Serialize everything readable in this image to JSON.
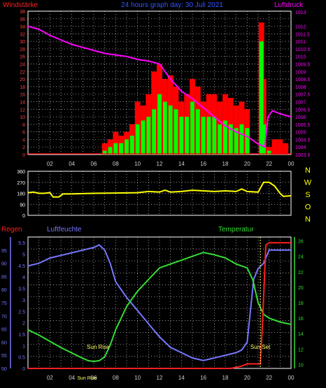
{
  "header": {
    "left_title": "Windstärke",
    "center_title": "24 hours graph day: 30 Juli 2021",
    "right_title": "Luftdruck"
  },
  "compass": [
    "N",
    "W",
    "S",
    "O",
    "N"
  ],
  "labels": {
    "regen": "Regen",
    "luftfeuchte": "Luftfeuchte",
    "temperatur": "Temperatur",
    "sun_rise": "Sun Rise",
    "sun_set": "Sun Set",
    "sun_rise_axis": "Sun Rise"
  },
  "colors": {
    "wind_gust": "#ff0000",
    "wind_avg": "#00ff00",
    "pressure": "#ff00ff",
    "direction": "#ffff00",
    "humidity": "#7777ff",
    "temperature": "#33dd33",
    "rain": "#ff2020",
    "wind_axis": "#ff4040",
    "pressure_axis": "#ff00ff",
    "dir_axis": "#ffffff",
    "rain_axis": "#7777ff",
    "temp_axis": "#33dd33",
    "grid": "#ffffff",
    "time_axis": "#4466ff"
  },
  "chart_data": [
    {
      "type": "bar",
      "title": "24 hours graph day: 30 Juli 2021",
      "ylabel": "Windstärke",
      "ylabel_right": "Luftdruck",
      "x_ticks": [
        "02",
        "04",
        "06",
        "08",
        "10",
        "12",
        "14",
        "16",
        "18",
        "20",
        "22",
        "00"
      ],
      "y_ticks": [
        "0",
        "2",
        "4",
        "6",
        "8",
        "10",
        "12",
        "14",
        "16",
        "18",
        "20",
        "22",
        "24",
        "26",
        "28",
        "30",
        "32",
        "34",
        "36",
        "38"
      ],
      "y_right_ticks": [
        "1003.5",
        "1004",
        "1004.5",
        "1005",
        "1005.5",
        "1006",
        "1006.5",
        "1007",
        "1007.5",
        "1008",
        "1008.5",
        "1009",
        "1009.5",
        "1010",
        "1010.5",
        "1011",
        "1011.5",
        "1012",
        "1013"
      ],
      "ylim": [
        0,
        38
      ],
      "ylim_right": [
        1003.5,
        1013
      ],
      "series": [
        {
          "name": "gust",
          "x": [
            7.0,
            7.5,
            8.0,
            8.5,
            9.0,
            9.5,
            10.0,
            10.5,
            11.0,
            11.5,
            12.0,
            12.5,
            13.0,
            13.5,
            14.0,
            14.5,
            15.0,
            15.5,
            16.0,
            16.5,
            17.0,
            17.5,
            18.0,
            18.5,
            19.0,
            19.5,
            20.0,
            21.3,
            21.5,
            22.0,
            22.5,
            23.0,
            23.5
          ],
          "values": [
            3,
            4,
            6,
            5,
            6,
            8,
            14,
            13,
            16,
            22,
            24,
            20,
            21,
            18,
            14,
            16,
            20,
            18,
            14,
            16,
            16,
            14,
            16,
            15,
            13,
            14,
            12,
            35,
            20,
            2,
            4,
            4,
            3
          ]
        },
        {
          "name": "average",
          "x": [
            7.0,
            7.5,
            8.0,
            8.5,
            9.0,
            9.5,
            10.0,
            10.5,
            11.0,
            11.5,
            12.0,
            12.5,
            13.0,
            13.5,
            14.0,
            14.5,
            15.0,
            15.5,
            16.0,
            16.5,
            17.0,
            17.5,
            18.0,
            18.5,
            19.0,
            19.5,
            20.0,
            21.3,
            21.5,
            22.0
          ],
          "values": [
            1,
            2,
            3,
            3,
            4,
            5,
            8,
            9,
            10,
            12,
            16,
            14,
            13,
            12,
            10,
            10,
            14,
            12,
            10,
            10,
            10,
            8,
            9,
            8,
            7,
            8,
            7,
            30,
            8,
            1
          ]
        },
        {
          "name": "pressure",
          "x": [
            0,
            1,
            2,
            3,
            4,
            5,
            6,
            7,
            8,
            9,
            10,
            11,
            12,
            12.5,
            13,
            14,
            15,
            16,
            17,
            18,
            19,
            20,
            21,
            21.6,
            21.9,
            22.3,
            23,
            24
          ],
          "values": [
            1012,
            1011.8,
            1011.4,
            1011.1,
            1010.8,
            1010.6,
            1010.4,
            1010.2,
            1010.1,
            1010.0,
            1009.8,
            1009.7,
            1009.5,
            1009.0,
            1008.5,
            1007.7,
            1007.2,
            1006.6,
            1006.0,
            1005.4,
            1005.0,
            1004.7,
            1004.2,
            1004.0,
            1006.0,
            1006.4,
            1006.2,
            1006.0
          ]
        }
      ]
    },
    {
      "type": "line",
      "ylabel": "Direction",
      "y_ticks": [
        "0",
        "90",
        "180",
        "270",
        "360"
      ],
      "ylim": [
        0,
        360
      ],
      "series": [
        {
          "name": "direction",
          "x": [
            0,
            0.5,
            1,
            1.5,
            2,
            2.3,
            2.8,
            3.2,
            4,
            6,
            8,
            10,
            11,
            12,
            12.5,
            13,
            14,
            15,
            16,
            17,
            18,
            19,
            19.5,
            20,
            21,
            21.5,
            22,
            22.5,
            23,
            23.3,
            24
          ],
          "values": [
            185,
            190,
            180,
            180,
            185,
            150,
            150,
            175,
            175,
            180,
            182,
            185,
            195,
            190,
            205,
            190,
            195,
            205,
            200,
            195,
            200,
            195,
            215,
            195,
            190,
            270,
            270,
            240,
            180,
            155,
            160
          ]
        }
      ]
    },
    {
      "type": "line",
      "ylabel": "Luftfeuchte",
      "ylabel_left": "Regen",
      "ylabel_right": "Temperatur",
      "x_ticks": [
        "02",
        "04",
        "06",
        "08",
        "10",
        "12",
        "14",
        "16",
        "18",
        "20",
        "22",
        "00"
      ],
      "y_ticks_humidity": [
        "50",
        "55",
        "60",
        "65",
        "70",
        "75",
        "80",
        "85",
        "90",
        "95"
      ],
      "y_ticks_rain": [
        "0",
        "0.5",
        "1",
        "1.5",
        "2",
        "2.5",
        "3",
        "3.5",
        "4",
        "4.5",
        "5",
        "5.5"
      ],
      "y_ticks_temp": [
        "10",
        "12",
        "14",
        "16",
        "18",
        "20",
        "22",
        "24",
        "26"
      ],
      "ylim_humidity": [
        50,
        100
      ],
      "ylim_rain": [
        0,
        5.75
      ],
      "ylim_temp": [
        9.5,
        26.5
      ],
      "series": [
        {
          "name": "humidity",
          "x": [
            0,
            1,
            2,
            3,
            4,
            5,
            6,
            6.5,
            7,
            7.5,
            8,
            9,
            10,
            11,
            12,
            13,
            14,
            15,
            16,
            17,
            18,
            19,
            19.5,
            20,
            20.3,
            20.6,
            21,
            21.5,
            22,
            23,
            24
          ],
          "values": [
            89,
            90,
            92,
            93,
            94,
            95,
            96,
            97,
            95,
            90,
            83,
            77,
            72,
            67,
            62,
            58,
            56,
            54,
            53,
            54,
            55,
            56,
            57,
            60,
            72,
            84,
            88,
            90,
            95,
            95,
            95
          ]
        },
        {
          "name": "temperature",
          "x": [
            0,
            1,
            2,
            3,
            4,
            5,
            5.5,
            6,
            6.5,
            7,
            7.5,
            8,
            9,
            10,
            11,
            12,
            13,
            14,
            15,
            16,
            17,
            18,
            19,
            20,
            20.5,
            21,
            21.5,
            22,
            23,
            24
          ],
          "values": [
            14.5,
            13.8,
            13.0,
            12.2,
            11.5,
            10.8,
            10.5,
            10.4,
            10.5,
            11.0,
            12.5,
            14.5,
            17.5,
            19.5,
            21.0,
            22.5,
            23.0,
            23.5,
            24.0,
            24.5,
            24.2,
            23.8,
            23.0,
            22.5,
            21.0,
            18.0,
            16.5,
            16.0,
            15.5,
            15.2
          ]
        },
        {
          "name": "rain",
          "x": [
            0,
            18.5,
            19.5,
            20,
            21.2,
            21.4,
            21.7,
            22,
            24
          ],
          "values": [
            0,
            0,
            0.1,
            0.2,
            0.2,
            2.0,
            5.4,
            5.5,
            5.5
          ]
        }
      ]
    }
  ]
}
